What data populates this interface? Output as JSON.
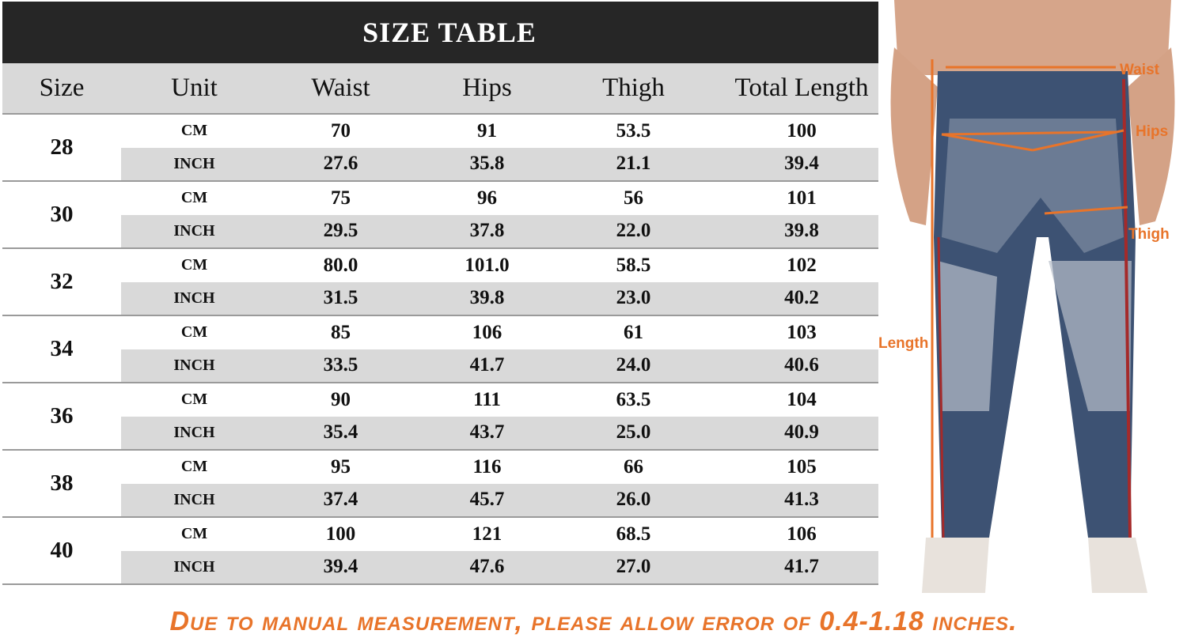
{
  "title": "SIZE TABLE",
  "columns": [
    "Size",
    "Unit",
    "Waist",
    "Hips",
    "Thigh",
    "Total Length"
  ],
  "units": {
    "cm": "CM",
    "inch": "INCH"
  },
  "sizes": [
    {
      "size": "28",
      "cm": [
        "70",
        "91",
        "53.5",
        "100"
      ],
      "inch": [
        "27.6",
        "35.8",
        "21.1",
        "39.4"
      ]
    },
    {
      "size": "30",
      "cm": [
        "75",
        "96",
        "56",
        "101"
      ],
      "inch": [
        "29.5",
        "37.8",
        "22.0",
        "39.8"
      ]
    },
    {
      "size": "32",
      "cm": [
        "80.0",
        "101.0",
        "58.5",
        "102"
      ],
      "inch": [
        "31.5",
        "39.8",
        "23.0",
        "40.2"
      ]
    },
    {
      "size": "34",
      "cm": [
        "85",
        "106",
        "61",
        "103"
      ],
      "inch": [
        "33.5",
        "41.7",
        "24.0",
        "40.6"
      ]
    },
    {
      "size": "36",
      "cm": [
        "90",
        "111",
        "63.5",
        "104"
      ],
      "inch": [
        "35.4",
        "43.7",
        "25.0",
        "40.9"
      ]
    },
    {
      "size": "38",
      "cm": [
        "95",
        "116",
        "66",
        "105"
      ],
      "inch": [
        "37.4",
        "45.7",
        "26.0",
        "41.3"
      ]
    },
    {
      "size": "40",
      "cm": [
        "100",
        "121",
        "68.5",
        "106"
      ],
      "inch": [
        "39.4",
        "47.6",
        "27.0",
        "41.7"
      ]
    }
  ],
  "diagram_labels": {
    "waist": "Waist",
    "hips": "Hips",
    "thigh": "Thigh",
    "length": "Length"
  },
  "note": "Due to manual measurement, please allow error of  0.4-1.18 inches.",
  "colors": {
    "accent": "#e8742a",
    "title_bar": "#262626",
    "stripe": "#d9d9d9"
  }
}
